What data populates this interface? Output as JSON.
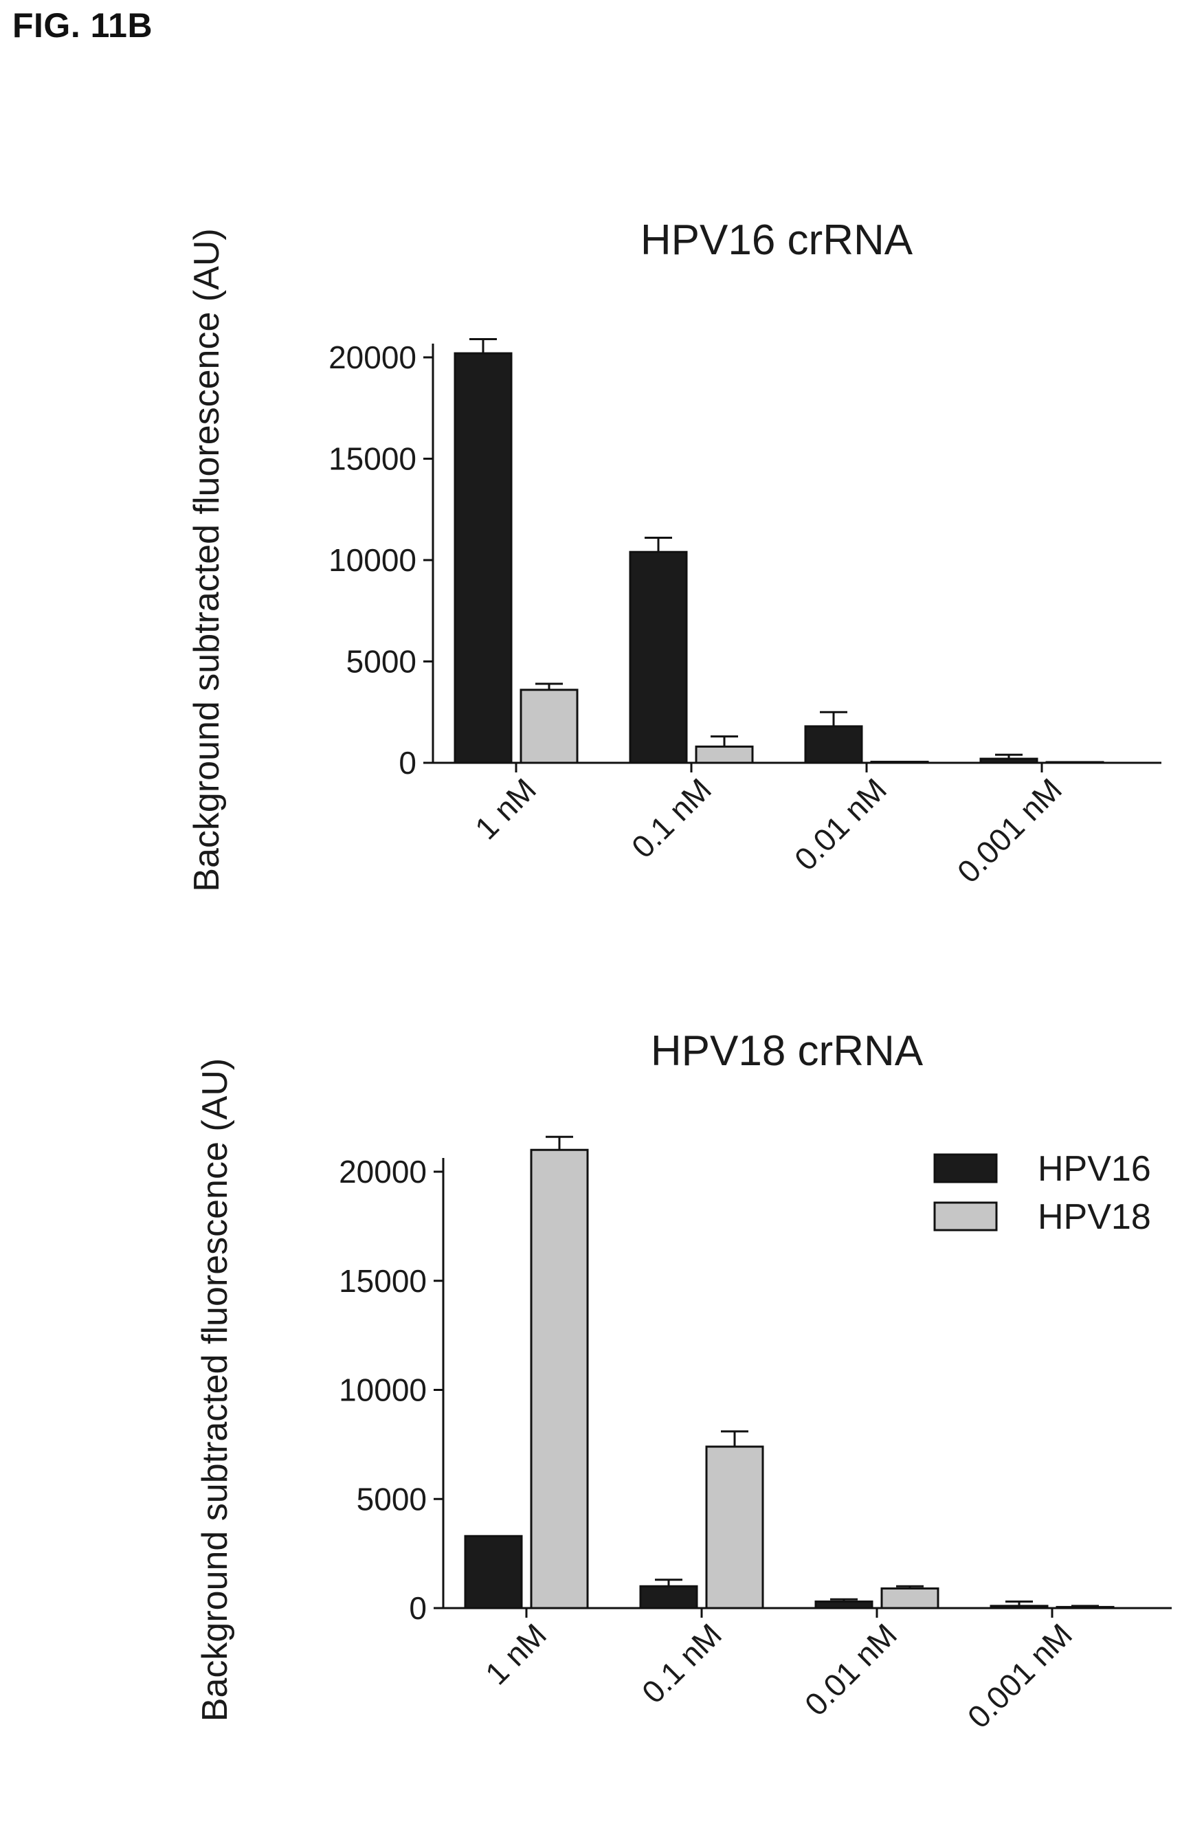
{
  "figure_label": "FIG. 11B",
  "colors": {
    "HPV16": "#1b1b1b",
    "HPV18": "#c6c6c6"
  },
  "chart_data": [
    {
      "type": "bar",
      "title": "HPV16 crRNA",
      "ylabel": "Background subtracted fluorescence (AU)",
      "xlabel": "",
      "ylim": [
        0,
        20000
      ],
      "yticks": [
        0,
        5000,
        10000,
        15000,
        20000
      ],
      "categories": [
        "1 nM",
        "0.1 nM",
        "0.01 nM",
        "0.001 nM"
      ],
      "series": [
        {
          "name": "HPV16",
          "values": [
            20200,
            10400,
            1800,
            200
          ],
          "errors": [
            700,
            700,
            700,
            200
          ]
        },
        {
          "name": "HPV18",
          "values": [
            3600,
            800,
            50,
            0
          ],
          "errors": [
            300,
            500,
            0,
            0
          ]
        }
      ],
      "legend": false
    },
    {
      "type": "bar",
      "title": "HPV18 crRNA",
      "ylabel": "Background subtracted fluorescence (AU)",
      "xlabel": "",
      "ylim": [
        0,
        20000
      ],
      "yticks": [
        0,
        5000,
        10000,
        15000,
        20000
      ],
      "categories": [
        "1 nM",
        "0.1 nM",
        "0.01 nM",
        "0.001 nM"
      ],
      "series": [
        {
          "name": "HPV16",
          "values": [
            3300,
            1000,
            300,
            100
          ],
          "errors": [
            0,
            300,
            100,
            200
          ]
        },
        {
          "name": "HPV18",
          "values": [
            21000,
            7400,
            900,
            50
          ],
          "errors": [
            600,
            700,
            100,
            50
          ]
        }
      ],
      "legend": true,
      "legend_position": "top-right"
    }
  ]
}
